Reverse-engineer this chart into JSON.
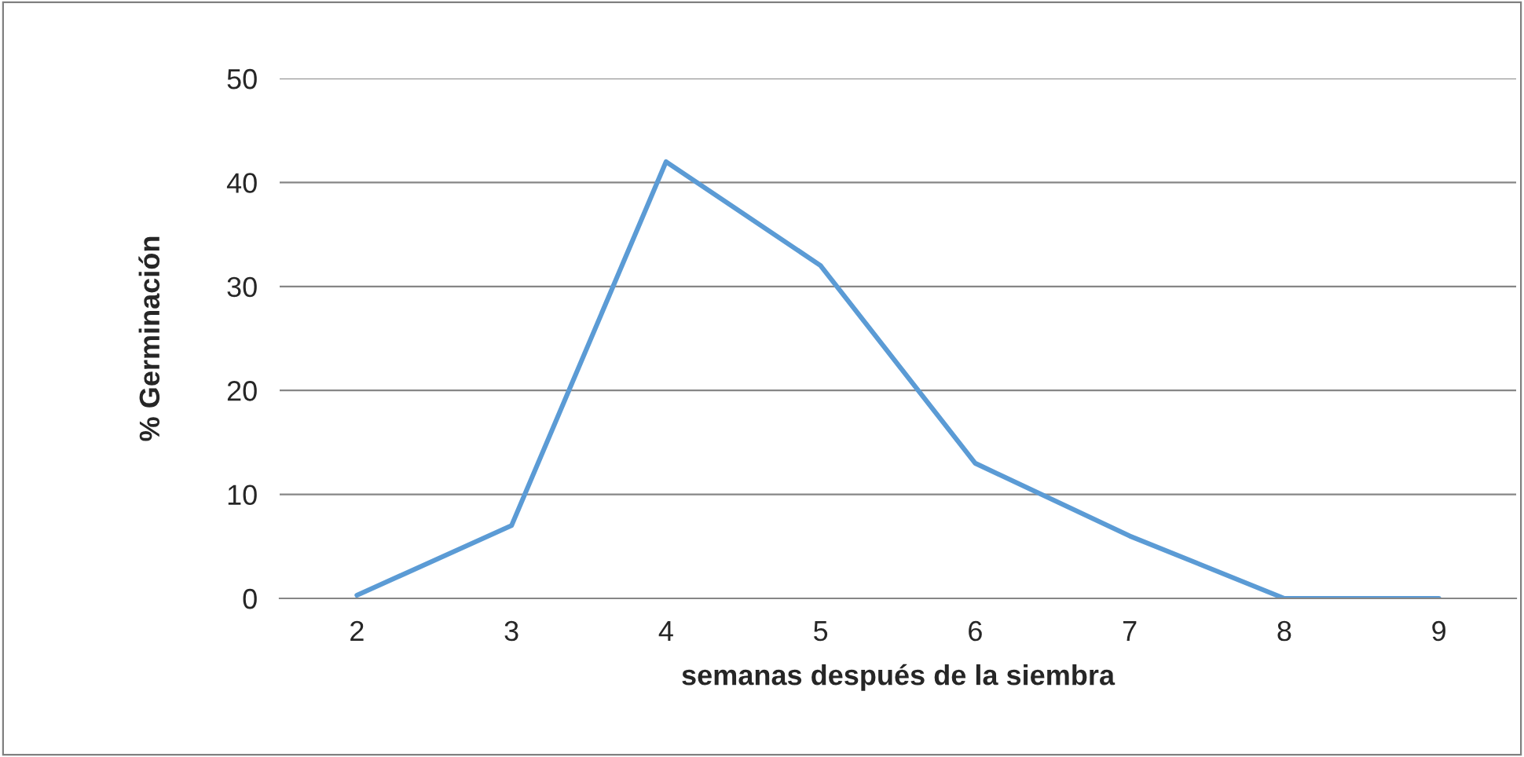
{
  "chart_data": {
    "type": "line",
    "xlabel": "semanas después de la siembra",
    "ylabel": "% Germinación",
    "categories": [
      "2",
      "3",
      "4",
      "5",
      "6",
      "7",
      "8",
      "9"
    ],
    "series": [
      {
        "color": "#5b9bd5",
        "values": [
          0.3,
          7,
          42,
          32,
          13,
          6,
          0,
          0
        ]
      }
    ],
    "ylim": [
      0,
      50
    ],
    "yticks": [
      0,
      10,
      20,
      30,
      40,
      50
    ],
    "grid": "y",
    "marker": "none",
    "line_style": "solid"
  }
}
